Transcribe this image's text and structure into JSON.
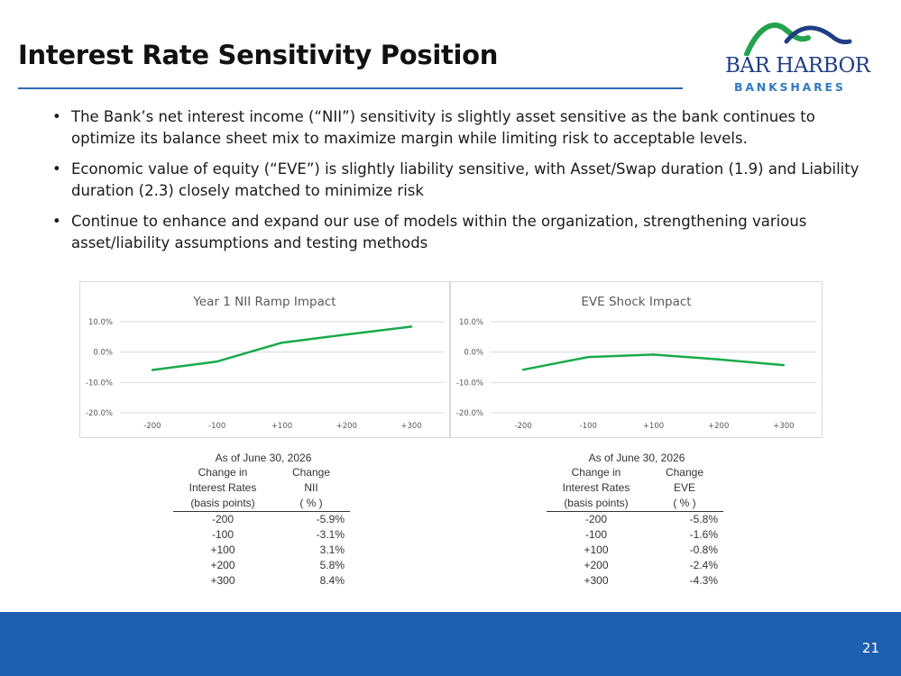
{
  "title": "Interest Rate Sensitivity Position",
  "logo": {
    "line1": "BAR HARBOR",
    "line2": "BANKSHARES"
  },
  "bullets": [
    "The Bank’s net interest income (“NII”) sensitivity is slightly asset sensitive as the bank continues to optimize its balance sheet mix to maximize margin while limiting risk to acceptable levels.",
    "Economic value of equity (“EVE”) is slightly liability sensitive, with Asset/Swap duration (1.9) and Liability duration (2.3) closely matched to minimize risk",
    "Continue to enhance and expand our use of models within the organization, strengthening various asset/liability assumptions and testing methods"
  ],
  "colors": {
    "accent": "#1d5fb0",
    "line": "#1aaa4a",
    "logo_navy": "#1f3e86",
    "logo_green": "#23a24d"
  },
  "chart_data": [
    {
      "type": "line",
      "title": "Year 1 NII Ramp Impact",
      "categories": [
        "-200",
        "-100",
        "+100",
        "+200",
        "+300"
      ],
      "values": [
        -5.9,
        -3.1,
        3.1,
        5.8,
        8.4
      ],
      "yticks": [
        "10.0%",
        "0.0%",
        "-10.0%",
        "-20.0%"
      ],
      "ylim": [
        -20,
        10
      ],
      "grid": true
    },
    {
      "type": "line",
      "title": "EVE Shock Impact",
      "categories": [
        "-200",
        "-100",
        "+100",
        "+200",
        "+300"
      ],
      "values": [
        -5.8,
        -1.6,
        -0.8,
        -2.4,
        -4.3
      ],
      "yticks": [
        "10.0%",
        "0.0%",
        "-10.0%",
        "-20.0%"
      ],
      "ylim": [
        -20,
        10
      ],
      "grid": true
    }
  ],
  "tables": [
    {
      "as_of": "As of June 30, 2026",
      "col1": [
        "Change in",
        "Interest Rates",
        "(basis points)"
      ],
      "col2": [
        "Change",
        "NII",
        "( % )"
      ],
      "rows": [
        [
          "-200",
          "-5.9%"
        ],
        [
          "-100",
          "-3.1%"
        ],
        [
          "+100",
          "3.1%"
        ],
        [
          "+200",
          "5.8%"
        ],
        [
          "+300",
          "8.4%"
        ]
      ]
    },
    {
      "as_of": "As of June 30, 2026",
      "col1": [
        "Change in",
        "Interest Rates",
        "(basis points)"
      ],
      "col2": [
        "Change",
        "EVE",
        "( % )"
      ],
      "rows": [
        [
          "-200",
          "-5.8%"
        ],
        [
          "-100",
          "-1.6%"
        ],
        [
          "+100",
          "-0.8%"
        ],
        [
          "+200",
          "-2.4%"
        ],
        [
          "+300",
          "-4.3%"
        ]
      ]
    }
  ],
  "page_number": "21"
}
